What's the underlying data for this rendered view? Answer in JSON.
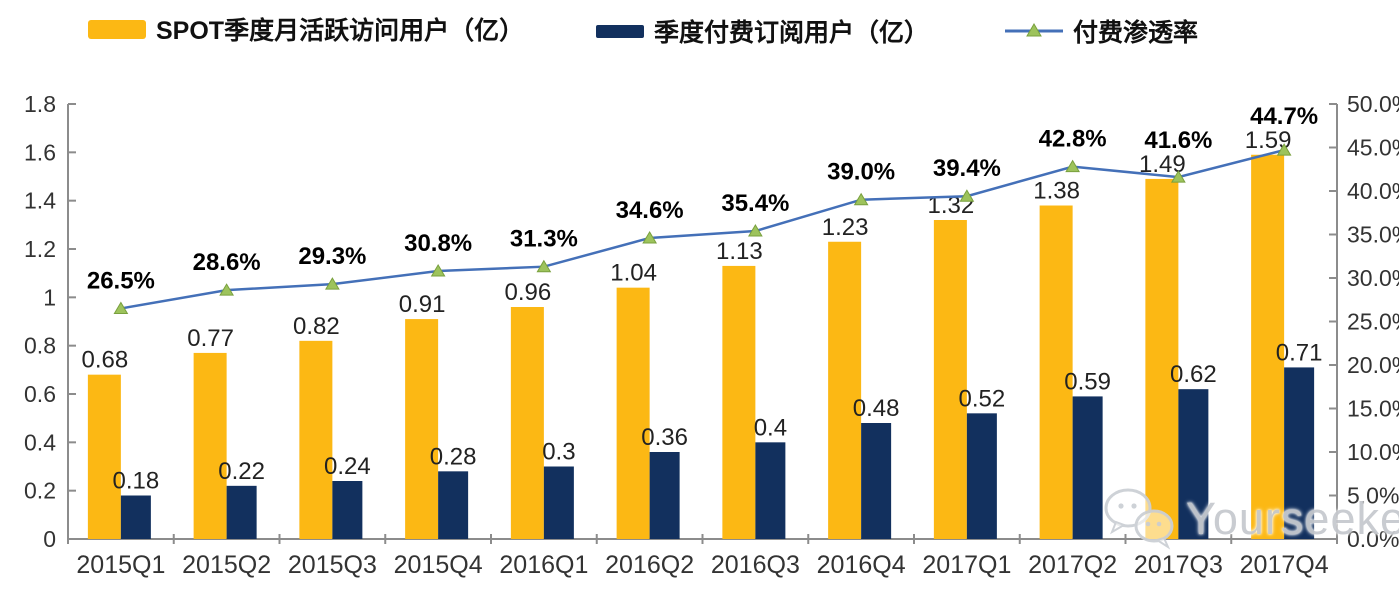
{
  "legend": {
    "items": [
      {
        "label": "SPOT季度月活跃访问用户（亿）",
        "type": "bar",
        "color": "#FCB814"
      },
      {
        "label": "季度付费订阅用户（亿）",
        "type": "bar",
        "color": "#12305E"
      },
      {
        "label": "付费渗透率",
        "type": "line",
        "color": "#4470B8",
        "marker_color": "#9DC35C"
      }
    ]
  },
  "chart_data": {
    "type": "combo-bar-line",
    "categories": [
      "2015Q1",
      "2015Q2",
      "2015Q3",
      "2015Q4",
      "2016Q1",
      "2016Q2",
      "2016Q3",
      "2016Q4",
      "2017Q1",
      "2017Q2",
      "2017Q3",
      "2017Q4"
    ],
    "series": [
      {
        "name": "SPOT季度月活跃访问用户（亿）",
        "type": "bar",
        "axis": "left",
        "color": "#FCB814",
        "values": [
          0.68,
          0.77,
          0.82,
          0.91,
          0.96,
          1.04,
          1.13,
          1.23,
          1.32,
          1.38,
          1.49,
          1.59
        ],
        "labels": [
          "0.68",
          "0.77",
          "0.82",
          "0.91",
          "0.96",
          "1.04",
          "1.13",
          "1.23",
          "1.32",
          "1.38",
          "1.49",
          "1.59"
        ]
      },
      {
        "name": "季度付费订阅用户（亿）",
        "type": "bar",
        "axis": "left",
        "color": "#12305E",
        "values": [
          0.18,
          0.22,
          0.24,
          0.28,
          0.3,
          0.36,
          0.4,
          0.48,
          0.52,
          0.59,
          0.62,
          0.71
        ],
        "labels": [
          "0.18",
          "0.22",
          "0.24",
          "0.28",
          "0.3",
          "0.36",
          "0.4",
          "0.48",
          "0.52",
          "0.59",
          "0.62",
          "0.71"
        ]
      },
      {
        "name": "付费渗透率",
        "type": "line",
        "axis": "right",
        "color": "#4470B8",
        "marker": "triangle",
        "marker_color": "#9DC35C",
        "values": [
          26.5,
          28.6,
          29.3,
          30.8,
          31.3,
          34.6,
          35.4,
          39.0,
          39.4,
          42.8,
          41.6,
          44.7
        ],
        "labels": [
          "26.5%",
          "28.6%",
          "29.3%",
          "30.8%",
          "31.3%",
          "34.6%",
          "35.4%",
          "39.0%",
          "39.4%",
          "42.8%",
          "41.6%",
          "44.7%"
        ]
      }
    ],
    "left_axis": {
      "min": 0,
      "max": 1.8,
      "step": 0.2,
      "tick_values": [
        0,
        0.2,
        0.4,
        0.6,
        0.8,
        1,
        1.2,
        1.4,
        1.6,
        1.8
      ],
      "tick_labels": [
        "0",
        "0.2",
        "0.4",
        "0.6",
        "0.8",
        "1",
        "1.2",
        "1.4",
        "1.6",
        "1.8"
      ]
    },
    "right_axis": {
      "min": 0,
      "max": 50,
      "step": 5,
      "tick_values": [
        0,
        5,
        10,
        15,
        20,
        25,
        30,
        35,
        40,
        45,
        50
      ],
      "tick_labels": [
        "0.0%",
        "5.0%",
        "10.0%",
        "15.0%",
        "20.0%",
        "25.0%",
        "30.0%",
        "35.0%",
        "40.0%",
        "45.0%",
        "50.0%"
      ]
    },
    "grid": false,
    "legend_position": "top",
    "axis_color": "#8C8C8C"
  },
  "watermark": {
    "text": "Yourseeker",
    "icon": "chat-bubbles-icon"
  }
}
